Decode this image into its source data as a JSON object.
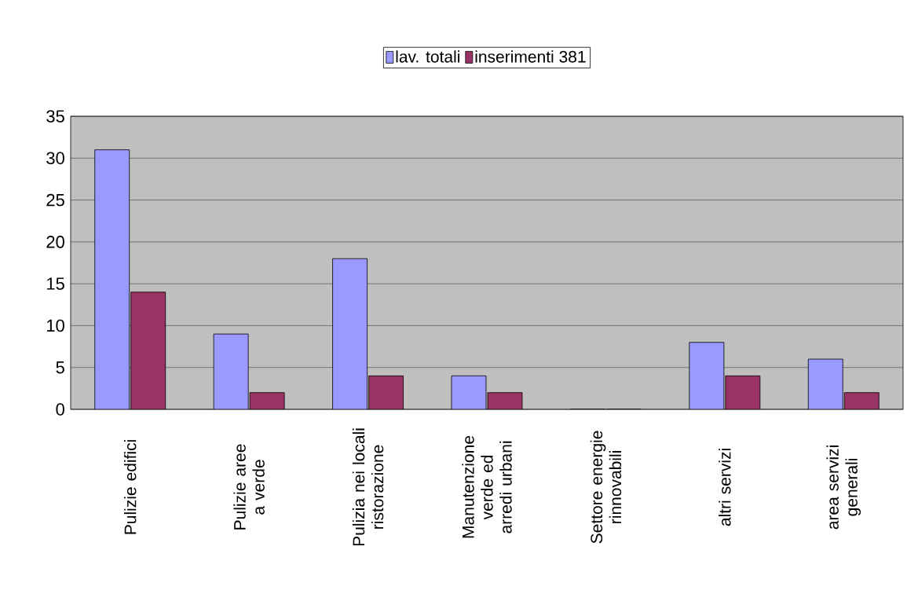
{
  "chart_data": {
    "type": "bar",
    "categories": [
      "Pulizie edifici",
      "Pulizie aree a verde",
      "Pulizia nei locali ristorazione",
      "Manutenzione verde ed arredi urbani",
      "Settore energie rinnovabili",
      "altri servizi",
      "area servizi generali"
    ],
    "series": [
      {
        "name": "lav. totali",
        "color": "#9999ff",
        "values": [
          31,
          9,
          18,
          4,
          0,
          8,
          6
        ]
      },
      {
        "name": "inserimenti 381",
        "color": "#993366",
        "values": [
          14,
          2,
          4,
          2,
          0,
          4,
          2
        ]
      }
    ],
    "ylim": [
      0,
      35
    ],
    "yticks": [
      0,
      5,
      10,
      15,
      20,
      25,
      30,
      35
    ],
    "grid": "y",
    "legend": "top"
  }
}
